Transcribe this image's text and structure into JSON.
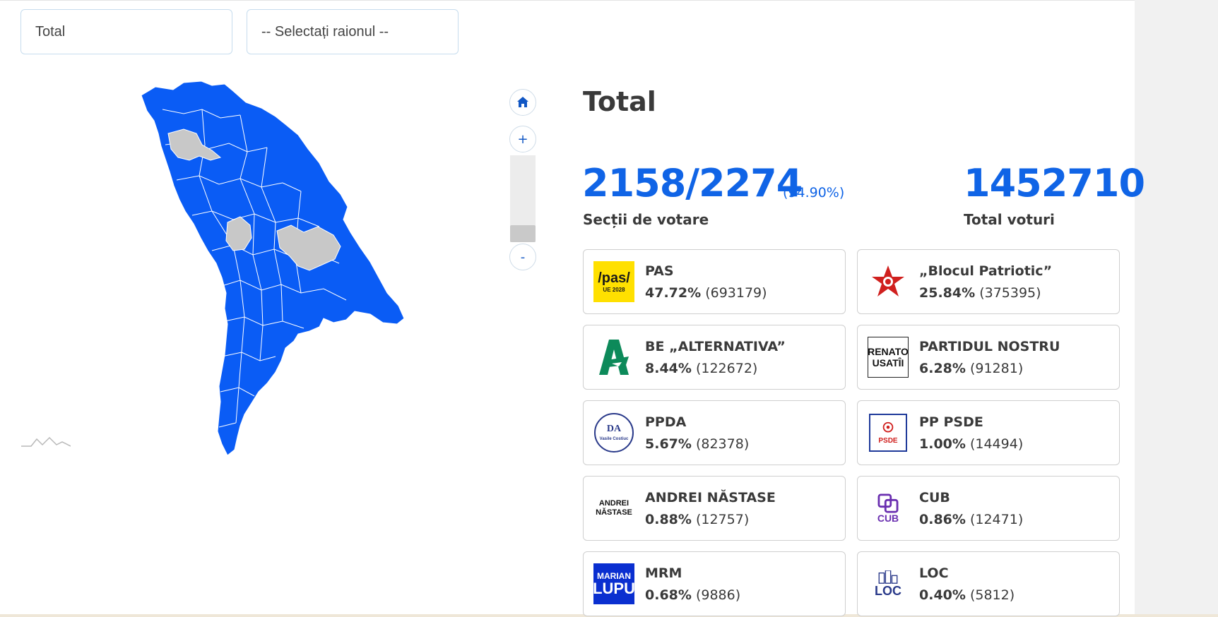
{
  "filters": {
    "total_label": "Total",
    "raion_placeholder": "-- Selectați raionul --"
  },
  "map": {
    "colors": {
      "counted": "#0a5cf5",
      "pending": "#c8c8c8",
      "border": "#ffffff"
    },
    "zoom": {
      "home_icon": "home-icon",
      "plus": "+",
      "minus": "-"
    }
  },
  "summary": {
    "title": "Total",
    "sections_value": "2158/2274",
    "sections_pct": "(94.90%)",
    "sections_label": "Secții de votare",
    "total_votes_value": "1452710",
    "total_votes_label": "Total voturi"
  },
  "parties": [
    {
      "name": "PAS",
      "pct": "47.72%",
      "votes": "(693179)",
      "logo": "pas-logo",
      "logo_text": "/pas/",
      "logo_subtext": "UE 2028"
    },
    {
      "name": "„Blocul Patriotic”",
      "pct": "25.84%",
      "votes": "(375395)",
      "logo": "red-star-logo"
    },
    {
      "name": "BE „ALTERNATIVA”",
      "pct": "8.44%",
      "votes": "(122672)",
      "logo": "alternativa-logo"
    },
    {
      "name": "PARTIDUL NOSTRU",
      "pct": "6.28%",
      "votes": "(91281)",
      "logo": "renato-usatii-logo",
      "logo_text": "RENATO",
      "logo_subtext": "USATÎI"
    },
    {
      "name": "PPDA",
      "pct": "5.67%",
      "votes": "(82378)",
      "logo": "ppda-logo",
      "logo_text": "DA",
      "logo_subtext": "Vasile Costiuc"
    },
    {
      "name": "PP PSDE",
      "pct": "1.00%",
      "votes": "(14494)",
      "logo": "psde-logo",
      "logo_text": "PSDE"
    },
    {
      "name": "ANDREI NĂSTASE",
      "pct": "0.88%",
      "votes": "(12757)",
      "logo": "andrei-nastase-logo",
      "logo_text": "ANDREI",
      "logo_subtext": "NĂSTASE"
    },
    {
      "name": "CUB",
      "pct": "0.86%",
      "votes": "(12471)",
      "logo": "cub-logo",
      "logo_text": "CUB"
    },
    {
      "name": "MRM",
      "pct": "0.68%",
      "votes": "(9886)",
      "logo": "marian-lupu-logo",
      "logo_text": "MARIAN",
      "logo_subtext": "LUPU"
    },
    {
      "name": "LOC",
      "pct": "0.40%",
      "votes": "(5812)",
      "logo": "loc-logo",
      "logo_text": "LOC"
    }
  ]
}
